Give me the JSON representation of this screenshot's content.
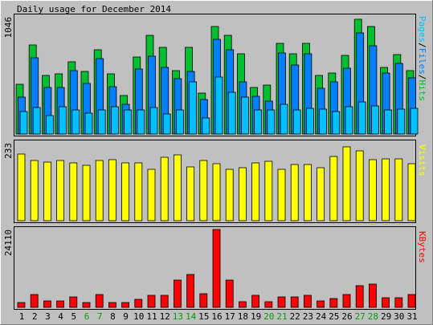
{
  "chart_data": {
    "type": "bar",
    "title": "Daily usage for December 2014",
    "categories": [
      "1",
      "2",
      "3",
      "4",
      "5",
      "6",
      "7",
      "8",
      "9",
      "10",
      "11",
      "12",
      "13",
      "14",
      "15",
      "16",
      "17",
      "18",
      "19",
      "20",
      "21",
      "22",
      "23",
      "24",
      "25",
      "26",
      "27",
      "28",
      "29",
      "30",
      "31"
    ],
    "weekend_days": [
      "6",
      "7",
      "13",
      "14",
      "20",
      "21",
      "27",
      "28"
    ],
    "panels": [
      {
        "id": "hits",
        "max_label": "1046",
        "ymax": 1046,
        "legend": [
          {
            "text": "Pages",
            "color": "#00c0ff"
          },
          {
            "text": "/",
            "color": "#000000"
          },
          {
            "text": "Files",
            "color": "#0080ff"
          },
          {
            "text": "/",
            "color": "#000000"
          },
          {
            "text": "Hits",
            "color": "#00c030"
          }
        ],
        "series": [
          {
            "name": "Hits",
            "color": "#00c030",
            "values": [
              446,
              795,
              522,
              538,
              648,
              562,
              752,
              536,
              344,
              686,
              883,
              775,
              564,
              772,
              368,
              962,
              883,
              716,
              414,
              434,
              810,
              714,
              810,
              524,
              542,
              702,
              1022,
              961,
              594,
              708,
              565
            ]
          },
          {
            "name": "Files",
            "color": "#0080ff",
            "values": [
              330,
              684,
              412,
              412,
              568,
              448,
              670,
              420,
              265,
              581,
              697,
              594,
              494,
              558,
              305,
              845,
              755,
              463,
              336,
              294,
              722,
              618,
              716,
              410,
              466,
              584,
              902,
              788,
              541,
              631,
              505
            ]
          },
          {
            "name": "Pages",
            "color": "#00c0ff",
            "values": [
              204,
              233,
              162,
              244,
              217,
              188,
              216,
              241,
              214,
              213,
              234,
              178,
              216,
              466,
              142,
              508,
              374,
              331,
              212,
              217,
              268,
              212,
              228,
              225,
              200,
              247,
              287,
              253,
              215,
              219,
              229
            ]
          }
        ]
      },
      {
        "id": "visits",
        "max_label": "233",
        "ymax": 233,
        "legend": [
          {
            "text": "Visits",
            "color": "#ffff00"
          }
        ],
        "series": [
          {
            "name": "Visits",
            "color": "#ffff00",
            "values": [
              200,
              179,
              176,
              181,
              173,
              165,
              181,
              183,
              172,
              173,
              153,
              189,
              198,
              162,
              181,
              170,
              153,
              158,
              174,
              178,
              153,
              169,
              168,
              159,
              193,
              220,
              210,
              183,
              185,
              186,
              170
            ]
          }
        ]
      },
      {
        "id": "kbytes",
        "max_label": "24110",
        "ymax": 24110,
        "legend": [
          {
            "text": "KBytes",
            "color": "#ff0000"
          }
        ],
        "series": [
          {
            "name": "KBytes",
            "color": "#ff0000",
            "values": [
              1500,
              3900,
              1900,
              1900,
              3200,
              1600,
              3900,
              1500,
              1500,
              2600,
              3800,
              3700,
              8400,
              10300,
              4300,
              24100,
              8500,
              1800,
              3800,
              1800,
              3300,
              3300,
              3800,
              1900,
              2700,
              3900,
              6600,
              7100,
              2900,
              2900,
              3900
            ]
          }
        ]
      }
    ]
  }
}
